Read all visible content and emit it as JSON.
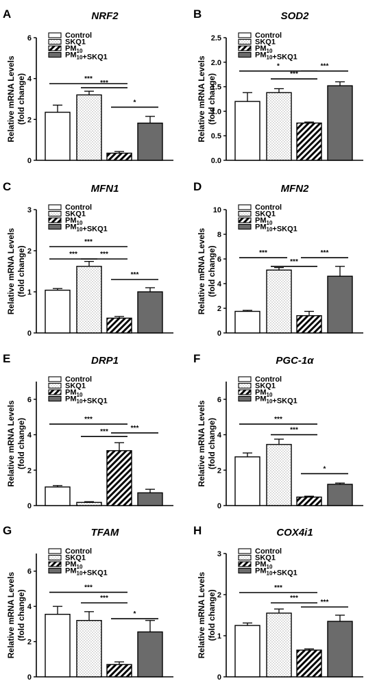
{
  "figure": {
    "group_labels": [
      "Control",
      "SKQ1",
      "PM10",
      "PM10+SKQ1"
    ],
    "ylabel_line1": "Relative mRNA Levels",
    "ylabel_line2": "(fold change)",
    "colors": {
      "control": "#ffffff",
      "skq1": "#eeeeee",
      "pm10": "#ffffff",
      "combo": "#6b6b6b",
      "stroke": "#000000"
    }
  },
  "chart_data": [
    {
      "letter": "A",
      "gene": "NRF2",
      "type": "bar",
      "ylim": [
        0,
        6
      ],
      "ticks": [
        0,
        2,
        4,
        6
      ],
      "values": [
        2.35,
        3.2,
        0.35,
        1.82
      ],
      "errors": [
        0.35,
        0.18,
        0.08,
        0.33
      ],
      "sig": [
        {
          "a": 0,
          "b": 2,
          "level": 3.75,
          "label": "***"
        },
        {
          "a": 1,
          "b": 2,
          "level": 3.55,
          "label": "***"
        },
        {
          "a": 2,
          "b": 3,
          "level": 2.6,
          "label": "*"
        }
      ]
    },
    {
      "letter": "B",
      "gene": "SOD2",
      "type": "bar",
      "ylim": [
        0,
        2.5
      ],
      "ticks": [
        0.0,
        0.5,
        1.0,
        1.5,
        2.0,
        2.5
      ],
      "values": [
        1.2,
        1.38,
        0.76,
        1.52
      ],
      "errors": [
        0.18,
        0.08,
        0.02,
        0.08
      ],
      "sig": [
        {
          "a": 0,
          "b": 2,
          "level": 1.82,
          "label": "*"
        },
        {
          "a": 1,
          "b": 2,
          "level": 1.66,
          "label": "***"
        },
        {
          "a": 2,
          "b": 3,
          "level": 1.82,
          "label": "***"
        }
      ]
    },
    {
      "letter": "C",
      "gene": "MFN1",
      "type": "bar",
      "ylim": [
        0,
        3
      ],
      "ticks": [
        0,
        1,
        2,
        3
      ],
      "values": [
        1.04,
        1.62,
        0.36,
        1.0
      ],
      "errors": [
        0.04,
        0.12,
        0.04,
        0.1
      ],
      "sig": [
        {
          "a": 0,
          "b": 2,
          "level": 2.1,
          "label": "***"
        },
        {
          "a": 0,
          "b": 1,
          "level": 1.8,
          "label": "***"
        },
        {
          "a": 1,
          "b": 2,
          "level": 1.8,
          "label": "***"
        },
        {
          "a": 2,
          "b": 3,
          "level": 1.3,
          "label": "***"
        }
      ]
    },
    {
      "letter": "D",
      "gene": "MFN2",
      "type": "bar",
      "ylim": [
        0,
        10
      ],
      "ticks": [
        0,
        2,
        4,
        6,
        8,
        10
      ],
      "values": [
        1.75,
        5.1,
        1.4,
        4.6
      ],
      "errors": [
        0.08,
        0.2,
        0.35,
        0.8
      ],
      "sig": [
        {
          "a": 0,
          "b": 1,
          "level": 6.1,
          "label": "***"
        },
        {
          "a": 1,
          "b": 2,
          "level": 5.4,
          "label": "***"
        },
        {
          "a": 2,
          "b": 3,
          "level": 6.1,
          "label": "***"
        }
      ]
    },
    {
      "letter": "E",
      "gene": "DRP1",
      "type": "bar",
      "ylim": [
        0,
        7
      ],
      "ticks": [
        0,
        2,
        4,
        6
      ],
      "values": [
        1.05,
        0.18,
        3.1,
        0.72
      ],
      "errors": [
        0.08,
        0.04,
        0.45,
        0.2
      ],
      "sig": [
        {
          "a": 0,
          "b": 2,
          "level": 4.6,
          "label": "***"
        },
        {
          "a": 1,
          "b": 2,
          "level": 3.9,
          "label": "***"
        },
        {
          "a": 2,
          "b": 3,
          "level": 4.1,
          "label": "***"
        }
      ]
    },
    {
      "letter": "F",
      "gene": "PGC-1α",
      "type": "bar",
      "ylim": [
        0,
        7
      ],
      "ticks": [
        0,
        2,
        4,
        6
      ],
      "values": [
        2.75,
        3.45,
        0.48,
        1.2
      ],
      "errors": [
        0.22,
        0.3,
        0.05,
        0.07
      ],
      "sig": [
        {
          "a": 0,
          "b": 2,
          "level": 4.6,
          "label": "***"
        },
        {
          "a": 1,
          "b": 2,
          "level": 4.0,
          "label": "***"
        },
        {
          "a": 2,
          "b": 3,
          "level": 1.8,
          "label": "*"
        }
      ]
    },
    {
      "letter": "G",
      "gene": "TFAM",
      "type": "bar",
      "ylim": [
        0,
        7
      ],
      "ticks": [
        0,
        2,
        4,
        6
      ],
      "values": [
        3.55,
        3.2,
        0.7,
        2.55
      ],
      "errors": [
        0.45,
        0.5,
        0.15,
        0.65
      ],
      "sig": [
        {
          "a": 0,
          "b": 2,
          "level": 4.8,
          "label": "***"
        },
        {
          "a": 1,
          "b": 2,
          "level": 4.2,
          "label": "***"
        },
        {
          "a": 2,
          "b": 3,
          "level": 3.3,
          "label": "*"
        }
      ]
    },
    {
      "letter": "H",
      "gene": "COX4i1",
      "type": "bar",
      "ylim": [
        0,
        3
      ],
      "ticks": [
        0,
        1,
        2,
        3
      ],
      "values": [
        1.25,
        1.55,
        0.65,
        1.35
      ],
      "errors": [
        0.06,
        0.1,
        0.03,
        0.15
      ],
      "sig": [
        {
          "a": 0,
          "b": 2,
          "level": 2.05,
          "label": "***"
        },
        {
          "a": 1,
          "b": 2,
          "level": 1.8,
          "label": "***"
        },
        {
          "a": 2,
          "b": 3,
          "level": 1.7,
          "label": "***"
        }
      ]
    }
  ]
}
